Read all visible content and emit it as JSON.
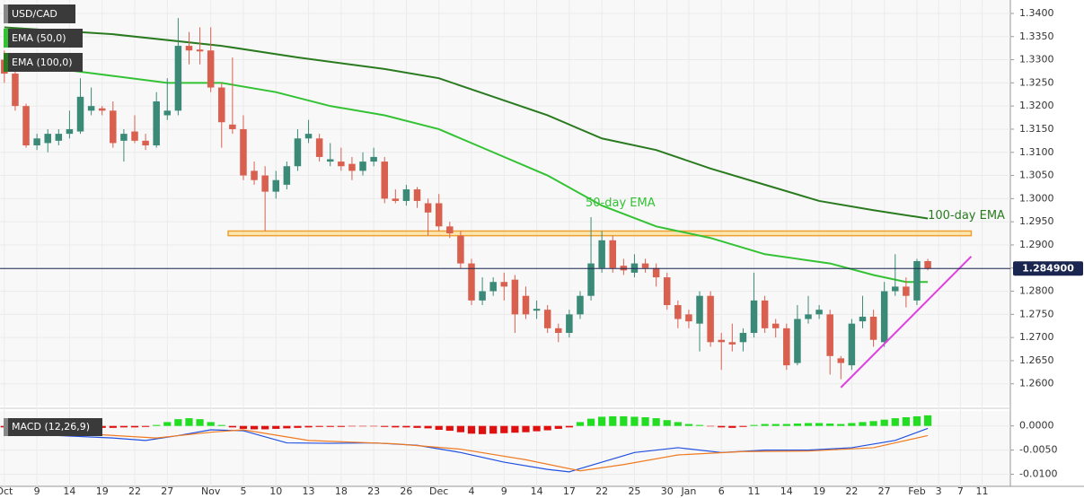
{
  "chart_data": [
    {
      "type": "candlestick",
      "name": "USD/CAD",
      "up_color": "#3b8a78",
      "down_color": "#d9604f",
      "x": [
        0,
        1,
        2,
        3,
        4,
        5,
        6,
        7,
        8,
        9,
        10,
        11,
        12,
        13,
        14,
        15,
        16,
        17,
        18,
        19,
        20,
        21,
        22,
        23,
        24,
        25,
        26,
        27,
        28,
        29,
        30,
        31,
        32,
        33,
        34,
        35,
        36,
        37,
        38,
        39,
        40,
        41,
        42,
        43,
        44,
        45,
        46,
        47,
        48,
        49,
        50,
        51,
        52,
        53,
        54,
        55,
        56,
        57,
        58,
        59,
        60,
        61,
        62,
        63,
        64,
        65,
        66,
        67,
        68,
        69,
        70,
        71,
        72,
        73,
        74,
        75,
        76,
        77,
        78,
        79,
        80,
        81,
        82,
        83,
        84,
        85
      ],
      "open": [
        1.33,
        1.327,
        1.32,
        1.3115,
        1.312,
        1.3125,
        1.314,
        1.3145,
        1.319,
        1.3195,
        1.319,
        1.3125,
        1.3145,
        1.3125,
        1.3115,
        1.318,
        1.319,
        1.333,
        1.3322,
        1.332,
        1.324,
        1.316,
        1.315,
        1.306,
        1.305,
        1.3015,
        1.303,
        1.307,
        1.313,
        1.313,
        1.308,
        1.308,
        1.3075,
        1.306,
        1.308,
        1.308,
        1.3,
        1.2995,
        1.302,
        1.299,
        1.299,
        1.294,
        1.292,
        1.286,
        1.278,
        1.28,
        1.282,
        1.2825,
        1.279,
        1.2758,
        1.276,
        1.272,
        1.271,
        1.275,
        1.279,
        1.285,
        1.291,
        1.2855,
        1.284,
        1.286,
        1.285,
        1.283,
        1.277,
        1.275,
        1.273,
        1.279,
        1.2695,
        1.269,
        1.269,
        1.271,
        1.278,
        1.273,
        1.272,
        1.2645,
        1.274,
        1.275,
        1.275,
        1.2655,
        1.264,
        1.2735,
        1.2745,
        1.269,
        1.28,
        1.281,
        1.278,
        1.2865
      ],
      "high": [
        1.332,
        1.329,
        1.3205,
        1.314,
        1.315,
        1.315,
        1.319,
        1.326,
        1.324,
        1.32,
        1.321,
        1.315,
        1.318,
        1.314,
        1.323,
        1.326,
        1.339,
        1.336,
        1.337,
        1.337,
        1.325,
        1.3305,
        1.318,
        1.308,
        1.307,
        1.306,
        1.308,
        1.315,
        1.317,
        1.314,
        1.312,
        1.311,
        1.309,
        1.31,
        1.311,
        1.309,
        1.302,
        1.303,
        1.3025,
        1.3,
        1.301,
        1.295,
        1.293,
        1.287,
        1.283,
        1.283,
        1.284,
        1.2835,
        1.281,
        1.278,
        1.277,
        1.273,
        1.276,
        1.28,
        1.296,
        1.293,
        1.292,
        1.287,
        1.288,
        1.287,
        1.286,
        1.284,
        1.278,
        1.276,
        1.28,
        1.28,
        1.271,
        1.273,
        1.272,
        1.284,
        1.279,
        1.274,
        1.273,
        1.277,
        1.279,
        1.277,
        1.276,
        1.266,
        1.274,
        1.279,
        1.276,
        1.282,
        1.288,
        1.283,
        1.287,
        1.287
      ],
      "low": [
        1.325,
        1.319,
        1.311,
        1.3105,
        1.31,
        1.3115,
        1.313,
        1.314,
        1.318,
        1.318,
        1.311,
        1.308,
        1.312,
        1.3105,
        1.311,
        1.317,
        1.318,
        1.329,
        1.329,
        1.323,
        1.311,
        1.314,
        1.304,
        1.303,
        1.293,
        1.3,
        1.302,
        1.306,
        1.312,
        1.308,
        1.307,
        1.306,
        1.304,
        1.305,
        1.307,
        1.299,
        1.299,
        1.2985,
        1.298,
        1.292,
        1.293,
        1.2915,
        1.285,
        1.277,
        1.277,
        1.279,
        1.278,
        1.271,
        1.274,
        1.274,
        1.271,
        1.269,
        1.27,
        1.274,
        1.278,
        1.284,
        1.284,
        1.2835,
        1.283,
        1.284,
        1.281,
        1.276,
        1.272,
        1.272,
        1.267,
        1.268,
        1.263,
        1.267,
        1.267,
        1.27,
        1.271,
        1.27,
        1.263,
        1.264,
        1.273,
        1.274,
        1.262,
        1.261,
        1.263,
        1.272,
        1.268,
        1.268,
        1.279,
        1.2765,
        1.277,
        1.2845
      ],
      "close": [
        1.327,
        1.32,
        1.3115,
        1.313,
        1.314,
        1.314,
        1.315,
        1.322,
        1.32,
        1.319,
        1.312,
        1.314,
        1.3125,
        1.3115,
        1.321,
        1.319,
        1.333,
        1.332,
        1.3318,
        1.324,
        1.3165,
        1.315,
        1.305,
        1.304,
        1.3015,
        1.304,
        1.307,
        1.313,
        1.314,
        1.309,
        1.3085,
        1.307,
        1.306,
        1.308,
        1.309,
        1.3,
        1.2995,
        1.302,
        1.2995,
        1.297,
        1.294,
        1.2925,
        1.286,
        1.278,
        1.28,
        1.282,
        1.281,
        1.275,
        1.275,
        1.2762,
        1.272,
        1.271,
        1.275,
        1.279,
        1.286,
        1.291,
        1.285,
        1.2845,
        1.286,
        1.285,
        1.283,
        1.277,
        1.274,
        1.2735,
        1.279,
        1.269,
        1.269,
        1.2685,
        1.271,
        1.278,
        1.272,
        1.272,
        1.264,
        1.274,
        1.275,
        1.276,
        1.266,
        1.2645,
        1.273,
        1.2745,
        1.2695,
        1.28,
        1.281,
        1.279,
        1.2865,
        1.2849
      ],
      "series": [
        {
          "name": "EMA (50,0)",
          "color": "#33c233",
          "x": [
            0,
            10,
            15,
            20,
            25,
            30,
            35,
            40,
            45,
            50,
            55,
            60,
            65,
            70,
            73,
            76,
            80,
            83,
            85
          ],
          "values": [
            1.3295,
            1.3265,
            1.325,
            1.325,
            1.323,
            1.32,
            1.318,
            1.315,
            1.31,
            1.305,
            1.2985,
            1.294,
            1.2915,
            1.288,
            1.287,
            1.286,
            1.2835,
            1.282,
            1.282
          ]
        },
        {
          "name": "EMA (100,0)",
          "color": "#2a7a20",
          "x": [
            0,
            10,
            20,
            27,
            35,
            40,
            45,
            50,
            55,
            60,
            65,
            70,
            75,
            80,
            85
          ],
          "values": [
            1.337,
            1.3355,
            1.333,
            1.3305,
            1.328,
            1.326,
            1.322,
            1.318,
            1.313,
            1.3105,
            1.3065,
            1.303,
            1.2995,
            1.2975,
            1.2957
          ]
        }
      ],
      "zone": {
        "low": 1.292,
        "high": 1.293,
        "x": [
          20.6,
          89
        ],
        "color": "#f0a030"
      },
      "trendline": {
        "x": [
          77,
          89
        ],
        "values": [
          1.2592,
          1.2875
        ],
        "color": "#e040e0"
      },
      "last_price": {
        "value": 1.2849,
        "label": "1.284900"
      },
      "annotations": [
        {
          "text": "50-day EMA",
          "x": 53.5,
          "y": 1.299,
          "color": "#33c233"
        },
        {
          "text": "100-day EMA",
          "x": 85,
          "y": 1.2963,
          "color": "#2a7a20"
        }
      ],
      "xlim": [
        -0.4,
        92.6
      ],
      "ylim": [
        1.2553,
        1.3429
      ],
      "grid": true,
      "yticks": [
        {
          "value": 1.34,
          "label": "1.3400"
        },
        {
          "value": 1.335,
          "label": "1.3350"
        },
        {
          "value": 1.33,
          "label": "1.3300"
        },
        {
          "value": 1.325,
          "label": "1.3250"
        },
        {
          "value": 1.32,
          "label": "1.3200"
        },
        {
          "value": 1.315,
          "label": "1.3150"
        },
        {
          "value": 1.31,
          "label": "1.3100"
        },
        {
          "value": 1.305,
          "label": "1.3050"
        },
        {
          "value": 1.3,
          "label": "1.3000"
        },
        {
          "value": 1.295,
          "label": "1.2950"
        },
        {
          "value": 1.29,
          "label": "1.2900"
        },
        {
          "value": 1.285,
          "label": "1.2850"
        },
        {
          "value": 1.28,
          "label": "1.2800"
        },
        {
          "value": 1.275,
          "label": "1.2750"
        },
        {
          "value": 1.27,
          "label": "1.2700"
        },
        {
          "value": 1.265,
          "label": "1.2650"
        },
        {
          "value": 1.26,
          "label": "1.2600"
        }
      ],
      "xticks": [
        {
          "value": 0,
          "label": "Oct"
        },
        {
          "value": 3,
          "label": "9"
        },
        {
          "value": 6,
          "label": "14"
        },
        {
          "value": 9,
          "label": "19"
        },
        {
          "value": 12,
          "label": "22"
        },
        {
          "value": 15,
          "label": "27"
        },
        {
          "value": 19,
          "label": "Nov"
        },
        {
          "value": 22,
          "label": "5"
        },
        {
          "value": 25,
          "label": "10"
        },
        {
          "value": 28,
          "label": "13"
        },
        {
          "value": 31,
          "label": "18"
        },
        {
          "value": 34,
          "label": "23"
        },
        {
          "value": 37,
          "label": "26"
        },
        {
          "value": 40,
          "label": "Dec"
        },
        {
          "value": 43,
          "label": "4"
        },
        {
          "value": 46,
          "label": "9"
        },
        {
          "value": 49,
          "label": "14"
        },
        {
          "value": 52,
          "label": "17"
        },
        {
          "value": 55,
          "label": "22"
        },
        {
          "value": 58,
          "label": "25"
        },
        {
          "value": 61,
          "label": "30"
        },
        {
          "value": 63,
          "label": "Jan"
        },
        {
          "value": 66,
          "label": "6"
        },
        {
          "value": 69,
          "label": "11"
        },
        {
          "value": 72,
          "label": "14"
        },
        {
          "value": 75,
          "label": "19"
        },
        {
          "value": 78,
          "label": "22"
        },
        {
          "value": 81,
          "label": "27"
        },
        {
          "value": 84,
          "label": "Feb"
        },
        {
          "value": 86,
          "label": "3"
        },
        {
          "value": 88,
          "label": "7"
        },
        {
          "value": 90,
          "label": "11"
        }
      ]
    },
    {
      "type": "macd",
      "name": "MACD (12,26,9)",
      "pos_color": "#22dd22",
      "neg_color": "#e01010",
      "histogram": [
        -0.0003,
        -0.0006,
        -0.0008,
        -0.0009,
        -0.0009,
        -0.0008,
        -0.0007,
        -0.0006,
        -0.0005,
        -0.0004,
        -0.0004,
        -0.0003,
        -0.0003,
        -0.0002,
        0.0002,
        0.0008,
        0.0014,
        0.0016,
        0.0014,
        0.0008,
        0.0002,
        -0.0003,
        -0.0006,
        -0.0007,
        -0.0007,
        -0.0006,
        -0.0005,
        -0.0004,
        -0.0003,
        -0.0002,
        -0.0002,
        -0.0002,
        -0.0001,
        -0.0001,
        -0.0001,
        -0.0002,
        -0.0003,
        -0.0003,
        -0.0004,
        -0.0005,
        -0.0008,
        -0.001,
        -0.0013,
        -0.0016,
        -0.0017,
        -0.0016,
        -0.0015,
        -0.0014,
        -0.0013,
        -0.0011,
        -0.0009,
        -0.0006,
        -0.0003,
        0.0008,
        0.0015,
        0.0019,
        0.002,
        0.002,
        0.0019,
        0.0018,
        0.0016,
        0.0012,
        0.0008,
        0.0004,
        0.0002,
        -0.0001,
        -0.0003,
        -0.0004,
        -0.0002,
        0.0002,
        0.0004,
        0.0004,
        0.0004,
        0.0005,
        0.0006,
        0.0006,
        0.0005,
        0.0004,
        0.0006,
        0.0008,
        0.001,
        0.0013,
        0.0016,
        0.0018,
        0.002,
        0.0022
      ],
      "lines": [
        {
          "color": "#2050e0",
          "x": [
            0,
            5,
            10,
            13,
            16,
            19,
            22,
            26,
            30,
            34,
            38,
            42,
            46,
            50,
            52,
            55,
            58,
            62,
            66,
            70,
            74,
            78,
            82,
            85
          ],
          "values": [
            -0.0002,
            -0.002,
            -0.0025,
            -0.003,
            -0.002,
            -0.0008,
            -0.001,
            -0.0035,
            -0.0036,
            -0.0035,
            -0.004,
            -0.0055,
            -0.0075,
            -0.009,
            -0.0095,
            -0.0075,
            -0.0055,
            -0.0045,
            -0.0055,
            -0.005,
            -0.005,
            -0.0045,
            -0.003,
            -0.0005
          ]
        },
        {
          "color": "#f07a20",
          "x": [
            0,
            8,
            14,
            19,
            22,
            28,
            36,
            42,
            48,
            53,
            57,
            62,
            68,
            74,
            80,
            85
          ],
          "values": [
            -0.0005,
            -0.0017,
            -0.0025,
            -0.0013,
            -0.0008,
            -0.003,
            -0.0037,
            -0.0048,
            -0.007,
            -0.0093,
            -0.008,
            -0.006,
            -0.0053,
            -0.0052,
            -0.0045,
            -0.002
          ]
        }
      ],
      "ylim": [
        -0.0125,
        0.0031
      ],
      "yticks": [
        {
          "value": 0,
          "label": "0.0000"
        },
        {
          "value": -0.005,
          "label": "-0.0050"
        },
        {
          "value": -0.01,
          "label": "-0.0100"
        }
      ]
    }
  ]
}
